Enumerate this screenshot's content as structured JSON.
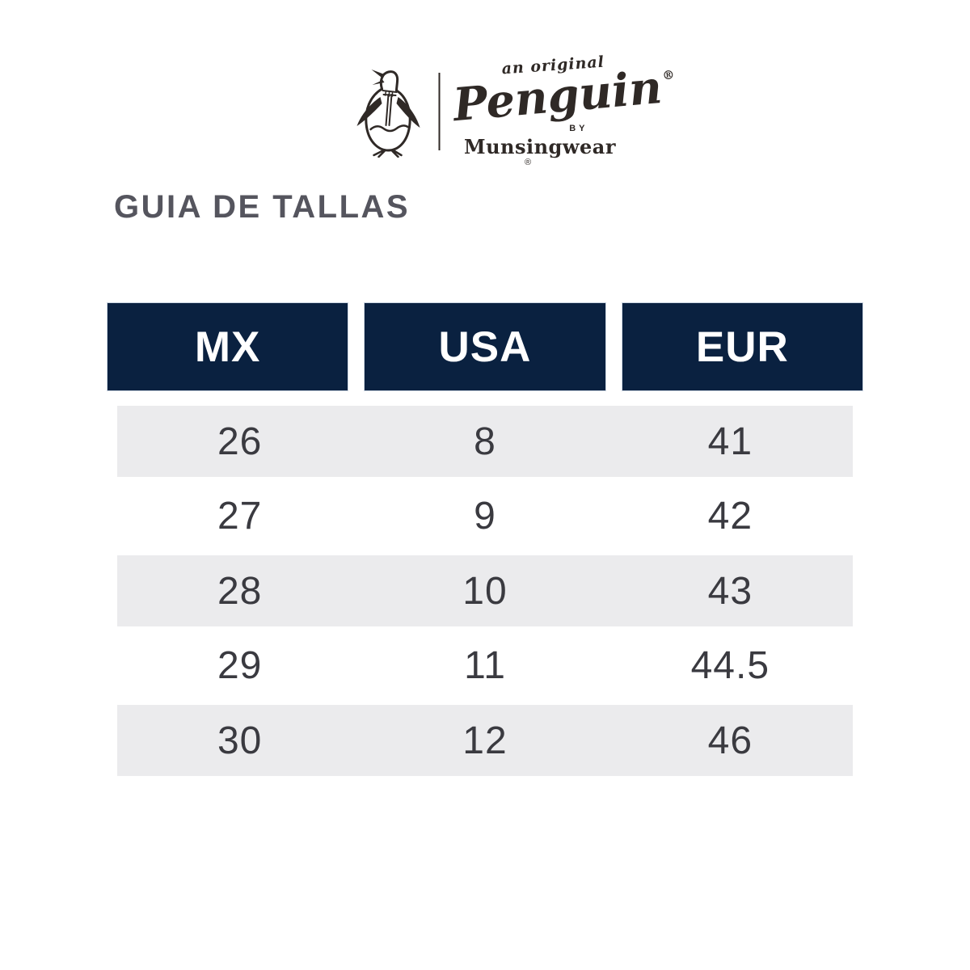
{
  "page": {
    "background": "#ffffff"
  },
  "logo": {
    "icon": "penguin-mascot",
    "tagline": "an original",
    "brand": "Penguin",
    "brand_registered": "®",
    "by": "BY",
    "subbrand": "Munsingwear",
    "subbrand_registered": "®",
    "color": "#2f2926"
  },
  "heading": {
    "title": "GUIA DE TALLAS",
    "color": "#55555e"
  },
  "size_table": {
    "columns": [
      "MX",
      "USA",
      "EUR"
    ],
    "rows": [
      [
        "26",
        "8",
        "41"
      ],
      [
        "27",
        "9",
        "42"
      ],
      [
        "28",
        "10",
        "43"
      ],
      [
        "29",
        "11",
        "44.5"
      ],
      [
        "30",
        "12",
        "46"
      ]
    ],
    "header_bg": "#0a2140",
    "header_text_color": "#ffffff",
    "stripe_bg": "#ebebed",
    "cell_text_color": "#3a3a40"
  }
}
